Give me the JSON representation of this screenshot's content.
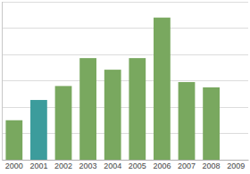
{
  "chart_data": {
    "type": "bar",
    "categories": [
      "2000",
      "2001",
      "2002",
      "2003",
      "2004",
      "2005",
      "2006",
      "2007",
      "2008",
      "2009"
    ],
    "values": [
      1.5,
      2.27,
      2.8,
      3.86,
      3.42,
      3.86,
      5.4,
      2.95,
      2.75,
      null
    ],
    "colors": [
      "#79a85f",
      "#3c9c9c",
      "#79a85f",
      "#79a85f",
      "#79a85f",
      "#79a85f",
      "#79a85f",
      "#79a85f",
      "#79a85f",
      "#79a85f"
    ],
    "ylim": [
      0,
      6
    ],
    "yticks": [
      0,
      1,
      2,
      3,
      4,
      5,
      6
    ],
    "grid": true,
    "tick_labels": "x"
  }
}
